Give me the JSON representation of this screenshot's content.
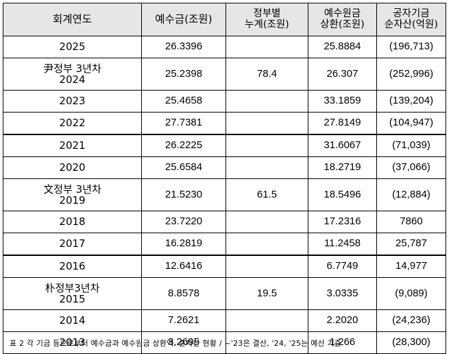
{
  "table": {
    "headers": [
      "회계연도",
      "예수금(조원)",
      "정부별\n누계(조원)",
      "예수원금\n상환(조원)",
      "공자기금\n순자산(억원)"
    ],
    "rows": [
      {
        "label": "",
        "year": "2025",
        "deposit": "26.3396",
        "cum": "",
        "repay": "25.8884",
        "net": "(196,713)"
      },
      {
        "label": "尹정부 3년차",
        "year": "2024",
        "deposit": "25.2398",
        "cum": "78.4",
        "repay": "26.307",
        "net": "(252,996)"
      },
      {
        "label": "",
        "year": "2023",
        "deposit": "25.4658",
        "cum": "",
        "repay": "33.1859",
        "net": "(139,204)"
      },
      {
        "label": "",
        "year": "2022",
        "deposit": "27.7381",
        "cum": "",
        "repay": "27.8149",
        "net": "(104,947)"
      },
      {
        "label": "",
        "year": "2021",
        "deposit": "26.2225",
        "cum": "",
        "repay": "31.6067",
        "net": "(71,039)"
      },
      {
        "label": "",
        "year": "2020",
        "deposit": "25.6584",
        "cum": "",
        "repay": "18.2719",
        "net": "(37,066)"
      },
      {
        "label": "文정부 3년차",
        "year": "2019",
        "deposit": "21.5230",
        "cum": "61.5",
        "repay": "18.5496",
        "net": "(12,884)"
      },
      {
        "label": "",
        "year": "2018",
        "deposit": "23.7220",
        "cum": "",
        "repay": "17.2316",
        "net": "7860"
      },
      {
        "label": "",
        "year": "2017",
        "deposit": "16.2819",
        "cum": "",
        "repay": "11.2458",
        "net": "25,787"
      },
      {
        "label": "",
        "year": "2016",
        "deposit": "12.6416",
        "cum": "",
        "repay": "6.7749",
        "net": "14,977"
      },
      {
        "label": "朴정부3년차",
        "year": "2015",
        "deposit": "8.8578",
        "cum": "19.5",
        "repay": "3.0335",
        "net": "(9,089)"
      },
      {
        "label": "",
        "year": "2014",
        "deposit": "7.2621",
        "cum": "",
        "repay": "2.2020",
        "net": "(24,236)"
      },
      {
        "label": "",
        "year": "2013",
        "deposit": "3.2695",
        "cum": "",
        "repay": "1.266",
        "net": "(28,300)"
      }
    ]
  },
  "caption": "표 2 각 기금 등으로부터 예수금과 예수원금 상환액, 순자산 현황 / ~'23은 결산, '24, '25는 예산 기준"
}
